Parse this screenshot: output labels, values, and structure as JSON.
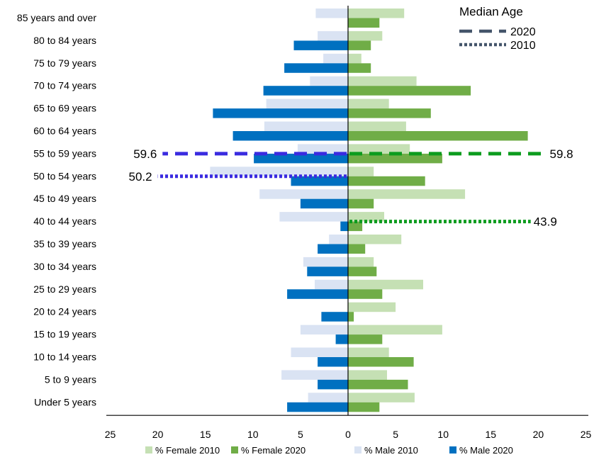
{
  "chart_data": {
    "type": "bar",
    "orientation": "horizontal",
    "layout": "population-pyramid",
    "title": "",
    "xlabel": "",
    "ylabel": "",
    "xlim": [
      -25,
      25
    ],
    "x_ticks": [
      -25,
      -20,
      -15,
      -10,
      -5,
      0,
      5,
      10,
      15,
      20,
      25
    ],
    "x_tick_labels": [
      "25",
      "20",
      "15",
      "10",
      "5",
      "0",
      "5",
      "10",
      "15",
      "20",
      "25"
    ],
    "grid": false,
    "legend_position": "bottom",
    "categories": [
      "85 years and over",
      "80 to 84 years",
      "75 to 79 years",
      "70 to 74 years",
      "65 to 69 years",
      "60 to 64 years",
      "55 to 59 years",
      "50 to 54 years",
      "45 to 49 years",
      "40 to 44 years",
      "35 to 39 years",
      "30 to 34 years",
      "25 to 29 years",
      "20 to 24 years",
      "15 to 19 years",
      "10 to 14 years",
      "5 to 9 years",
      "Under 5 years"
    ],
    "series": [
      {
        "name": "% Female 2010",
        "side": "right",
        "color": "#c5e0b4",
        "values": [
          5.9,
          3.6,
          1.4,
          7.2,
          4.3,
          6.1,
          6.5,
          2.7,
          12.3,
          3.8,
          5.6,
          2.7,
          7.9,
          5.0,
          9.9,
          4.3,
          4.1,
          7.0
        ]
      },
      {
        "name": "% Female 2020",
        "side": "right",
        "color": "#70ad47",
        "values": [
          3.3,
          2.4,
          2.4,
          12.9,
          8.7,
          18.9,
          9.9,
          8.1,
          2.7,
          1.5,
          1.8,
          3.0,
          3.6,
          0.6,
          3.6,
          6.9,
          6.3,
          3.3
        ]
      },
      {
        "name": "% Male 2010",
        "side": "left",
        "color": "#dae3f3",
        "values": [
          3.4,
          3.2,
          2.6,
          4.0,
          8.6,
          8.8,
          5.3,
          14.5,
          9.3,
          7.2,
          2.0,
          4.7,
          3.5,
          0,
          5.0,
          6.0,
          7.0,
          4.2
        ]
      },
      {
        "name": "% Male 2020",
        "side": "left",
        "color": "#0070c0",
        "values": [
          0,
          5.7,
          6.7,
          8.9,
          14.2,
          12.1,
          9.9,
          6.0,
          5.0,
          0.8,
          3.2,
          4.3,
          6.4,
          2.8,
          1.3,
          3.2,
          3.2,
          6.4
        ]
      }
    ],
    "median_age": {
      "legend_title": "Median Age",
      "legend_entries": [
        {
          "label": "2020",
          "style": "dashed",
          "color": "#44546a"
        },
        {
          "label": "2010",
          "style": "dotted",
          "color": "#44546a"
        }
      ],
      "lines": [
        {
          "side": "male",
          "year": "2020",
          "value": 59.6,
          "label": "59.6",
          "style": "dashed",
          "color": "#3a2be0",
          "length": 19.5
        },
        {
          "side": "male",
          "year": "2010",
          "value": 50.2,
          "label": "50.2",
          "style": "dotted",
          "color": "#3a2be0",
          "length": 20.0
        },
        {
          "side": "female",
          "year": "2020",
          "value": 59.8,
          "label": "59.8",
          "style": "dashed",
          "color": "#0c9c1e",
          "length": 20.9
        },
        {
          "side": "female",
          "year": "2010",
          "value": 43.9,
          "label": "43.9",
          "style": "dotted",
          "color": "#0c9c1e",
          "length": 19.2
        }
      ]
    }
  }
}
